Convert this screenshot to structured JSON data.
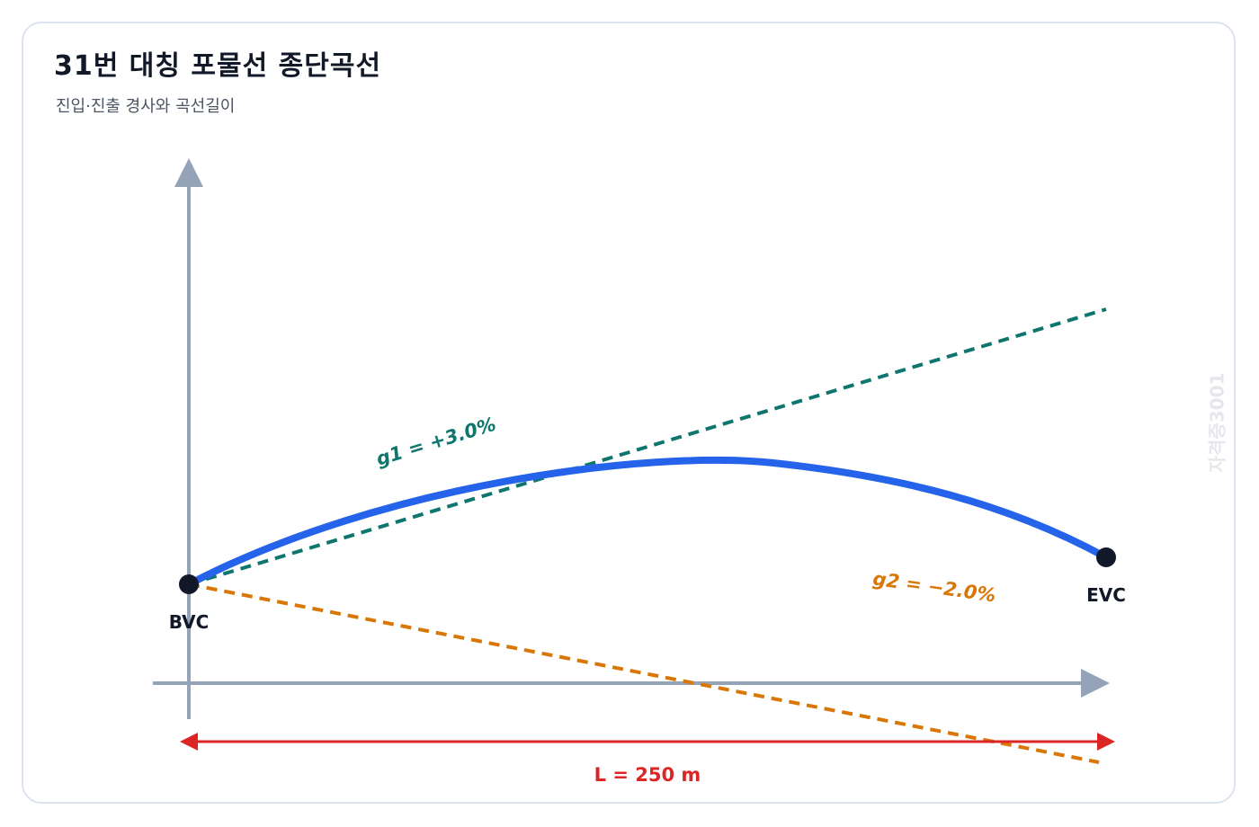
{
  "title": "31번 대칭 포물선 종단곡선",
  "subtitle": "진입·진출 경사와 곡선길이",
  "watermark": "자격증3001",
  "points": {
    "start_label": "BVC",
    "end_label": "EVC"
  },
  "grades": {
    "g1_label": "g1 = +3.0%",
    "g2_label": "g2 = −2.0%",
    "g1_percent": 3.0,
    "g2_percent": -2.0
  },
  "length": {
    "label": "L = 250 m",
    "value_m": 250
  },
  "colors": {
    "curve": "#2563eb",
    "g1_tangent": "#0f766e",
    "g2_tangent": "#d97706",
    "length_arrow": "#dc2626",
    "axes": "#94a3b8",
    "points": "#111827"
  }
}
